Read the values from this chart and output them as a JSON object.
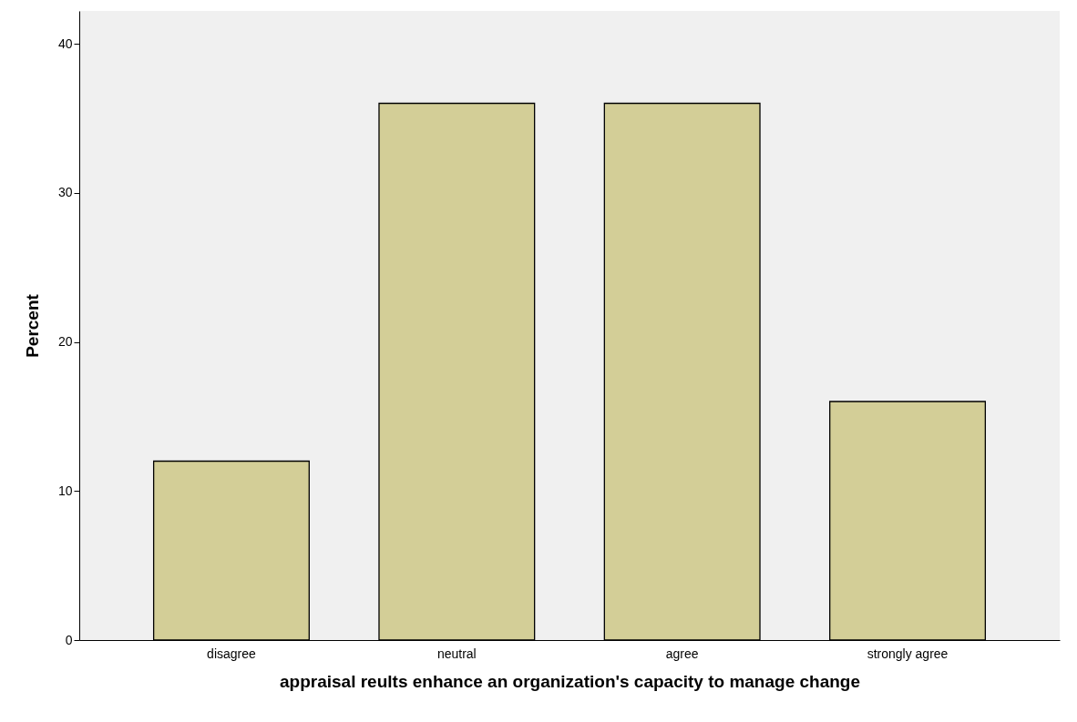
{
  "chart_data": {
    "type": "bar",
    "xlabel": "appraisal reults enhance an organization's capacity to manage change",
    "ylabel": "Percent",
    "categories": [
      "disagree",
      "neutral",
      "agree",
      "strongly agree"
    ],
    "values": [
      12,
      36,
      36,
      16
    ],
    "color": "#d3ce97",
    "ylim": [
      0,
      42.2
    ],
    "yticks": [
      0,
      10,
      20,
      30,
      40
    ],
    "grid": false
  }
}
